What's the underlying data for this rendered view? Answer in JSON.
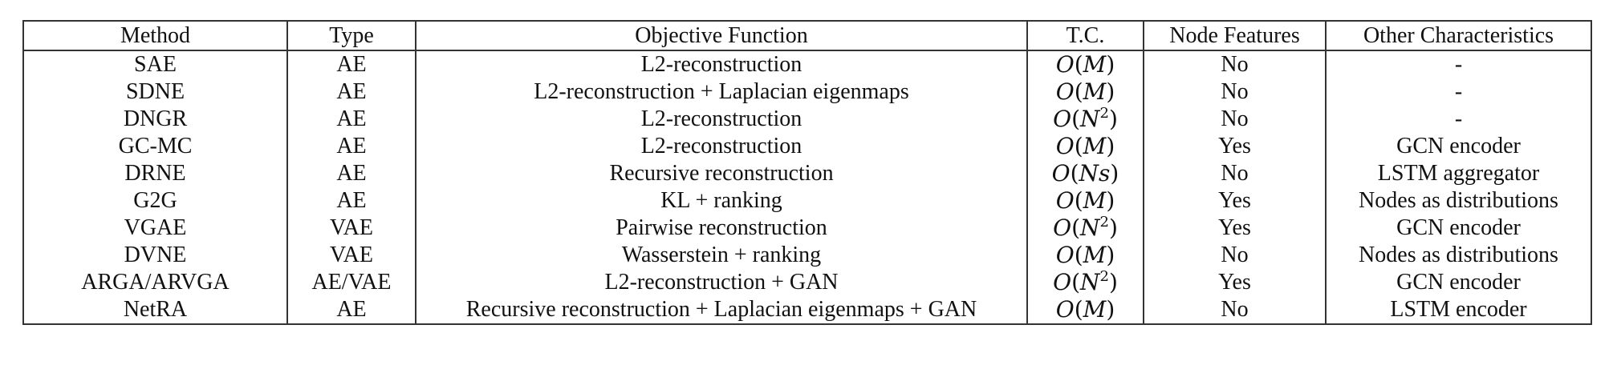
{
  "table": {
    "headers": [
      "Method",
      "Type",
      "Objective Function",
      "T.C.",
      "Node Features",
      "Other Characteristics"
    ],
    "rows": [
      {
        "method": "SAE",
        "type": "AE",
        "objective": "L2-reconstruction",
        "tc": {
          "var": "M",
          "exp": ""
        },
        "node_features": "No",
        "other": "-"
      },
      {
        "method": "SDNE",
        "type": "AE",
        "objective": "L2-reconstruction + Laplacian eigenmaps",
        "tc": {
          "var": "M",
          "exp": ""
        },
        "node_features": "No",
        "other": "-"
      },
      {
        "method": "DNGR",
        "type": "AE",
        "objective": "L2-reconstruction",
        "tc": {
          "var": "N",
          "exp": "2"
        },
        "node_features": "No",
        "other": "-"
      },
      {
        "method": "GC-MC",
        "type": "AE",
        "objective": "L2-reconstruction",
        "tc": {
          "var": "M",
          "exp": ""
        },
        "node_features": "Yes",
        "other": "GCN encoder"
      },
      {
        "method": "DRNE",
        "type": "AE",
        "objective": "Recursive reconstruction",
        "tc": {
          "var": "Ns",
          "exp": ""
        },
        "node_features": "No",
        "other": "LSTM aggregator"
      },
      {
        "method": "G2G",
        "type": "AE",
        "objective": "KL + ranking",
        "tc": {
          "var": "M",
          "exp": ""
        },
        "node_features": "Yes",
        "other": "Nodes as distributions"
      },
      {
        "method": "VGAE",
        "type": "VAE",
        "objective": "Pairwise reconstruction",
        "tc": {
          "var": "N",
          "exp": "2"
        },
        "node_features": "Yes",
        "other": "GCN encoder"
      },
      {
        "method": "DVNE",
        "type": "VAE",
        "objective": "Wasserstein + ranking",
        "tc": {
          "var": "M",
          "exp": ""
        },
        "node_features": "No",
        "other": "Nodes as distributions"
      },
      {
        "method": "ARGA/ARVGA",
        "type": "AE/VAE",
        "objective": "L2-reconstruction + GAN",
        "tc": {
          "var": "N",
          "exp": "2"
        },
        "node_features": "Yes",
        "other": "GCN encoder"
      },
      {
        "method": "NetRA",
        "type": "AE",
        "objective": "Recursive reconstruction + Laplacian eigenmaps + GAN",
        "tc": {
          "var": "M",
          "exp": ""
        },
        "node_features": "No",
        "other": "LSTM encoder"
      }
    ]
  }
}
